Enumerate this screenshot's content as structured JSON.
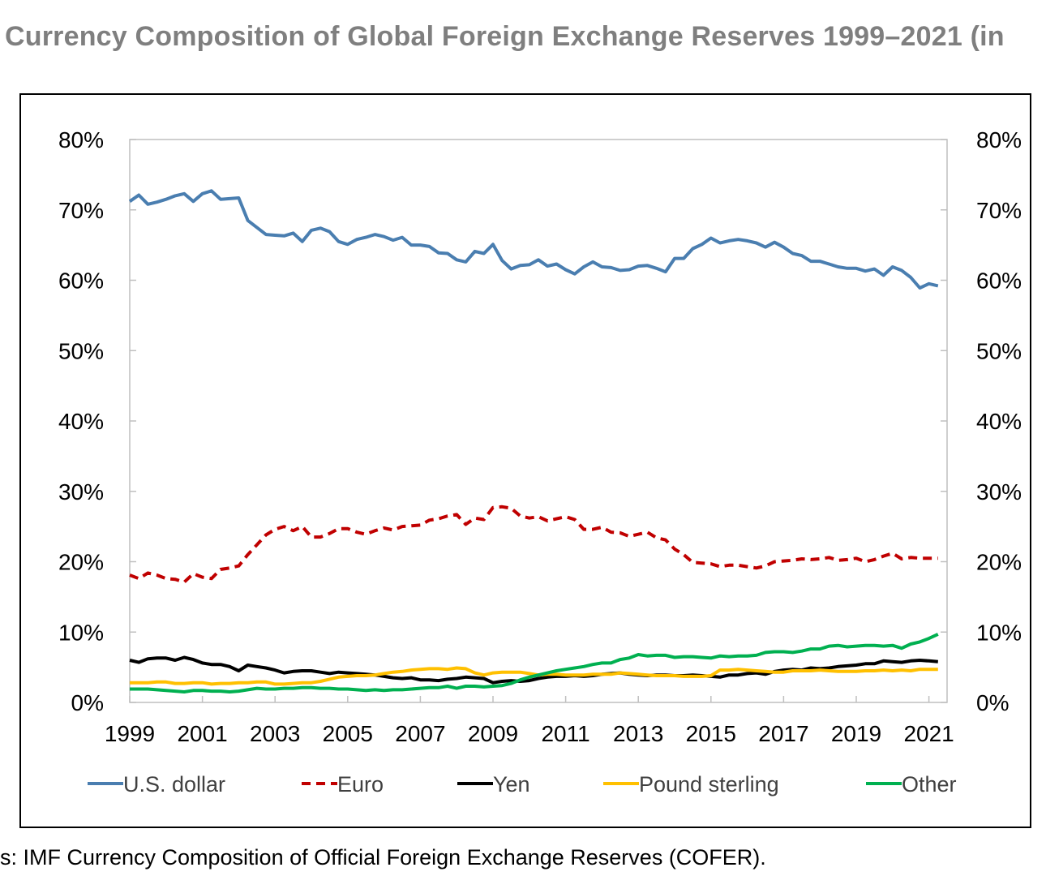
{
  "title": "Currency Composition of Global Foreign Exchange Reserves 1999–2021 (in",
  "source": "s: IMF Currency Composition of Official Foreign Exchange Reserves (COFER).",
  "chart_data": {
    "type": "line",
    "title": "Currency Composition of Global Foreign Exchange Reserves 1999–2021 (in",
    "xlabel": "",
    "ylabel": "",
    "ylim": [
      0,
      80
    ],
    "xlim": [
      1999,
      2021.5
    ],
    "y_ticks": [
      "0%",
      "10%",
      "20%",
      "30%",
      "40%",
      "50%",
      "60%",
      "70%",
      "80%"
    ],
    "x_ticks": [
      "1999",
      "2001",
      "2003",
      "2005",
      "2007",
      "2009",
      "2011",
      "2013",
      "2015",
      "2017",
      "2019",
      "2021"
    ],
    "secondary_y_axis": true,
    "grid": false,
    "legend_position": "bottom",
    "series": [
      {
        "name": "U.S. dollar",
        "color": "#4a7eb0",
        "style": "solid",
        "x": [
          1999.0,
          1999.25,
          1999.5,
          1999.75,
          2000.0,
          2000.25,
          2000.5,
          2000.75,
          2001.0,
          2001.25,
          2001.5,
          2001.75,
          2002.0,
          2002.25,
          2002.5,
          2002.75,
          2003.0,
          2003.25,
          2003.5,
          2003.75,
          2004.0,
          2004.25,
          2004.5,
          2004.75,
          2005.0,
          2005.25,
          2005.5,
          2005.75,
          2006.0,
          2006.25,
          2006.5,
          2006.75,
          2007.0,
          2007.25,
          2007.5,
          2007.75,
          2008.0,
          2008.25,
          2008.5,
          2008.75,
          2009.0,
          2009.25,
          2009.5,
          2009.75,
          2010.0,
          2010.25,
          2010.5,
          2010.75,
          2011.0,
          2011.25,
          2011.5,
          2011.75,
          2012.0,
          2012.25,
          2012.5,
          2012.75,
          2013.0,
          2013.25,
          2013.5,
          2013.75,
          2014.0,
          2014.25,
          2014.5,
          2014.75,
          2015.0,
          2015.25,
          2015.5,
          2015.75,
          2016.0,
          2016.25,
          2016.5,
          2016.75,
          2017.0,
          2017.25,
          2017.5,
          2017.75,
          2018.0,
          2018.25,
          2018.5,
          2018.75,
          2019.0,
          2019.25,
          2019.5,
          2019.75,
          2020.0,
          2020.25,
          2020.5,
          2020.75,
          2021.0,
          2021.25
        ],
        "values": [
          71.2,
          72.1,
          70.8,
          71.1,
          71.5,
          72.0,
          72.3,
          71.2,
          72.3,
          72.7,
          71.5,
          71.6,
          71.7,
          68.5,
          67.5,
          66.5,
          66.4,
          66.3,
          66.7,
          65.5,
          67.1,
          67.4,
          66.9,
          65.5,
          65.1,
          65.8,
          66.1,
          66.5,
          66.2,
          65.7,
          66.1,
          65.0,
          65.0,
          64.8,
          63.9,
          63.8,
          62.9,
          62.6,
          64.1,
          63.8,
          65.1,
          62.8,
          61.6,
          62.1,
          62.2,
          62.9,
          62.0,
          62.3,
          61.5,
          60.9,
          61.9,
          62.6,
          61.9,
          61.8,
          61.4,
          61.5,
          62.0,
          62.1,
          61.7,
          61.2,
          63.1,
          63.1,
          64.5,
          65.1,
          66.0,
          65.3,
          65.6,
          65.8,
          65.6,
          65.3,
          64.7,
          65.4,
          64.7,
          63.8,
          63.5,
          62.7,
          62.7,
          62.3,
          61.9,
          61.7,
          61.7,
          61.3,
          61.6,
          60.7,
          61.9,
          61.4,
          60.4,
          58.9,
          59.5,
          59.2
        ]
      },
      {
        "name": "Euro",
        "color": "#c00000",
        "style": "dashed",
        "x": [
          1999.0,
          1999.25,
          1999.5,
          1999.75,
          2000.0,
          2000.25,
          2000.5,
          2000.75,
          2001.0,
          2001.25,
          2001.5,
          2001.75,
          2002.0,
          2002.25,
          2002.5,
          2002.75,
          2003.0,
          2003.25,
          2003.5,
          2003.75,
          2004.0,
          2004.25,
          2004.5,
          2004.75,
          2005.0,
          2005.25,
          2005.5,
          2005.75,
          2006.0,
          2006.25,
          2006.5,
          2006.75,
          2007.0,
          2007.25,
          2007.5,
          2007.75,
          2008.0,
          2008.25,
          2008.5,
          2008.75,
          2009.0,
          2009.25,
          2009.5,
          2009.75,
          2010.0,
          2010.25,
          2010.5,
          2010.75,
          2011.0,
          2011.25,
          2011.5,
          2011.75,
          2012.0,
          2012.25,
          2012.5,
          2012.75,
          2013.0,
          2013.25,
          2013.5,
          2013.75,
          2014.0,
          2014.25,
          2014.5,
          2014.75,
          2015.0,
          2015.25,
          2015.5,
          2015.75,
          2016.0,
          2016.25,
          2016.5,
          2016.75,
          2017.0,
          2017.25,
          2017.5,
          2017.75,
          2018.0,
          2018.25,
          2018.5,
          2018.75,
          2019.0,
          2019.25,
          2019.5,
          2019.75,
          2020.0,
          2020.25,
          2020.5,
          2020.75,
          2021.0,
          2021.25
        ],
        "values": [
          18.1,
          17.6,
          18.4,
          18.1,
          17.6,
          17.5,
          17.1,
          18.3,
          17.8,
          17.6,
          18.9,
          19.1,
          19.4,
          21.0,
          22.4,
          23.8,
          24.6,
          25.0,
          24.4,
          25.0,
          23.5,
          23.5,
          24.0,
          24.7,
          24.7,
          24.2,
          23.9,
          24.4,
          24.8,
          24.5,
          25.0,
          25.1,
          25.2,
          25.9,
          26.1,
          26.5,
          26.7,
          25.3,
          26.2,
          26.0,
          27.7,
          27.8,
          27.6,
          26.5,
          26.2,
          26.4,
          25.8,
          26.1,
          26.4,
          26.0,
          24.6,
          24.6,
          24.9,
          24.2,
          24.1,
          23.6,
          23.9,
          24.2,
          23.4,
          23.1,
          21.8,
          21.0,
          19.9,
          19.8,
          19.7,
          19.3,
          19.5,
          19.5,
          19.3,
          19.1,
          19.4,
          20.0,
          20.1,
          20.2,
          20.4,
          20.3,
          20.4,
          20.6,
          20.2,
          20.3,
          20.5,
          20.0,
          20.3,
          20.8,
          21.2,
          20.4,
          20.6,
          20.5,
          20.5,
          20.5
        ]
      },
      {
        "name": "Yen",
        "color": "#000000",
        "style": "solid",
        "x": [
          1999.0,
          1999.25,
          1999.5,
          1999.75,
          2000.0,
          2000.25,
          2000.5,
          2000.75,
          2001.0,
          2001.25,
          2001.5,
          2001.75,
          2002.0,
          2002.25,
          2002.5,
          2002.75,
          2003.0,
          2003.25,
          2003.5,
          2003.75,
          2004.0,
          2004.25,
          2004.5,
          2004.75,
          2005.0,
          2005.25,
          2005.5,
          2005.75,
          2006.0,
          2006.25,
          2006.5,
          2006.75,
          2007.0,
          2007.25,
          2007.5,
          2007.75,
          2008.0,
          2008.25,
          2008.5,
          2008.75,
          2009.0,
          2009.25,
          2009.5,
          2009.75,
          2010.0,
          2010.25,
          2010.5,
          2010.75,
          2011.0,
          2011.25,
          2011.5,
          2011.75,
          2012.0,
          2012.25,
          2012.5,
          2012.75,
          2013.0,
          2013.25,
          2013.5,
          2013.75,
          2014.0,
          2014.25,
          2014.5,
          2014.75,
          2015.0,
          2015.25,
          2015.5,
          2015.75,
          2016.0,
          2016.25,
          2016.5,
          2016.75,
          2017.0,
          2017.25,
          2017.5,
          2017.75,
          2018.0,
          2018.25,
          2018.5,
          2018.75,
          2019.0,
          2019.25,
          2019.5,
          2019.75,
          2020.0,
          2020.25,
          2020.5,
          2020.75,
          2021.0,
          2021.25
        ],
        "values": [
          6.0,
          5.7,
          6.2,
          6.3,
          6.3,
          6.0,
          6.4,
          6.1,
          5.6,
          5.4,
          5.4,
          5.1,
          4.5,
          5.3,
          5.1,
          4.9,
          4.6,
          4.2,
          4.4,
          4.5,
          4.5,
          4.3,
          4.1,
          4.3,
          4.2,
          4.1,
          4.0,
          3.9,
          3.7,
          3.5,
          3.4,
          3.5,
          3.2,
          3.2,
          3.1,
          3.3,
          3.4,
          3.6,
          3.5,
          3.4,
          2.8,
          3.0,
          3.1,
          3.0,
          3.1,
          3.4,
          3.6,
          3.7,
          3.7,
          3.8,
          3.7,
          3.8,
          4.0,
          4.1,
          4.2,
          4.0,
          3.9,
          3.8,
          3.9,
          3.9,
          3.8,
          3.8,
          3.9,
          3.8,
          3.7,
          3.6,
          3.9,
          3.9,
          4.1,
          4.2,
          4.0,
          4.4,
          4.6,
          4.7,
          4.6,
          4.9,
          4.8,
          4.9,
          5.1,
          5.2,
          5.3,
          5.5,
          5.5,
          5.9,
          5.8,
          5.7,
          5.9,
          6.0,
          5.9,
          5.8
        ]
      },
      {
        "name": "Pound sterling",
        "color": "#ffc000",
        "style": "solid",
        "x": [
          1999.0,
          1999.25,
          1999.5,
          1999.75,
          2000.0,
          2000.25,
          2000.5,
          2000.75,
          2001.0,
          2001.25,
          2001.5,
          2001.75,
          2002.0,
          2002.25,
          2002.5,
          2002.75,
          2003.0,
          2003.25,
          2003.5,
          2003.75,
          2004.0,
          2004.25,
          2004.5,
          2004.75,
          2005.0,
          2005.25,
          2005.5,
          2005.75,
          2006.0,
          2006.25,
          2006.5,
          2006.75,
          2007.0,
          2007.25,
          2007.5,
          2007.75,
          2008.0,
          2008.25,
          2008.5,
          2008.75,
          2009.0,
          2009.25,
          2009.5,
          2009.75,
          2010.0,
          2010.25,
          2010.5,
          2010.75,
          2011.0,
          2011.25,
          2011.5,
          2011.75,
          2012.0,
          2012.25,
          2012.5,
          2012.75,
          2013.0,
          2013.25,
          2013.5,
          2013.75,
          2014.0,
          2014.25,
          2014.5,
          2014.75,
          2015.0,
          2015.25,
          2015.5,
          2015.75,
          2016.0,
          2016.25,
          2016.5,
          2016.75,
          2017.0,
          2017.25,
          2017.5,
          2017.75,
          2018.0,
          2018.25,
          2018.5,
          2018.75,
          2019.0,
          2019.25,
          2019.5,
          2019.75,
          2020.0,
          2020.25,
          2020.5,
          2020.75,
          2021.0,
          2021.25
        ],
        "values": [
          2.8,
          2.8,
          2.8,
          2.9,
          2.9,
          2.7,
          2.7,
          2.8,
          2.8,
          2.6,
          2.7,
          2.7,
          2.8,
          2.8,
          2.9,
          2.9,
          2.6,
          2.6,
          2.7,
          2.8,
          2.8,
          3.0,
          3.3,
          3.6,
          3.7,
          3.8,
          3.8,
          3.9,
          4.1,
          4.3,
          4.4,
          4.6,
          4.7,
          4.8,
          4.8,
          4.7,
          4.9,
          4.8,
          4.2,
          3.9,
          4.2,
          4.3,
          4.3,
          4.3,
          4.1,
          3.9,
          4.0,
          4.0,
          3.9,
          3.9,
          3.9,
          4.0,
          4.0,
          4.0,
          4.2,
          4.1,
          4.0,
          3.9,
          3.8,
          3.8,
          3.8,
          3.7,
          3.7,
          3.7,
          3.8,
          4.6,
          4.6,
          4.7,
          4.6,
          4.5,
          4.4,
          4.3,
          4.3,
          4.5,
          4.5,
          4.5,
          4.6,
          4.5,
          4.4,
          4.4,
          4.4,
          4.5,
          4.5,
          4.6,
          4.5,
          4.6,
          4.5,
          4.7,
          4.7,
          4.7
        ]
      },
      {
        "name": "Other",
        "color": "#00b050",
        "style": "solid",
        "x": [
          1999.0,
          1999.25,
          1999.5,
          1999.75,
          2000.0,
          2000.25,
          2000.5,
          2000.75,
          2001.0,
          2001.25,
          2001.5,
          2001.75,
          2002.0,
          2002.25,
          2002.5,
          2002.75,
          2003.0,
          2003.25,
          2003.5,
          2003.75,
          2004.0,
          2004.25,
          2004.5,
          2004.75,
          2005.0,
          2005.25,
          2005.5,
          2005.75,
          2006.0,
          2006.25,
          2006.5,
          2006.75,
          2007.0,
          2007.25,
          2007.5,
          2007.75,
          2008.0,
          2008.25,
          2008.5,
          2008.75,
          2009.0,
          2009.25,
          2009.5,
          2009.75,
          2010.0,
          2010.25,
          2010.5,
          2010.75,
          2011.0,
          2011.25,
          2011.5,
          2011.75,
          2012.0,
          2012.25,
          2012.5,
          2012.75,
          2013.0,
          2013.25,
          2013.5,
          2013.75,
          2014.0,
          2014.25,
          2014.5,
          2014.75,
          2015.0,
          2015.25,
          2015.5,
          2015.75,
          2016.0,
          2016.25,
          2016.5,
          2016.75,
          2017.0,
          2017.25,
          2017.5,
          2017.75,
          2018.0,
          2018.25,
          2018.5,
          2018.75,
          2019.0,
          2019.25,
          2019.5,
          2019.75,
          2020.0,
          2020.25,
          2020.5,
          2020.75,
          2021.0,
          2021.25
        ],
        "values": [
          1.9,
          1.9,
          1.9,
          1.8,
          1.7,
          1.6,
          1.5,
          1.7,
          1.7,
          1.6,
          1.6,
          1.5,
          1.6,
          1.8,
          2.0,
          1.9,
          1.9,
          2.0,
          2.0,
          2.1,
          2.1,
          2.0,
          2.0,
          1.9,
          1.9,
          1.8,
          1.7,
          1.8,
          1.7,
          1.8,
          1.8,
          1.9,
          2.0,
          2.1,
          2.1,
          2.3,
          2.0,
          2.3,
          2.3,
          2.2,
          2.3,
          2.4,
          2.7,
          3.2,
          3.6,
          3.9,
          4.2,
          4.5,
          4.7,
          4.9,
          5.1,
          5.4,
          5.6,
          5.6,
          6.1,
          6.3,
          6.8,
          6.6,
          6.7,
          6.7,
          6.4,
          6.5,
          6.5,
          6.4,
          6.3,
          6.6,
          6.5,
          6.6,
          6.6,
          6.7,
          7.1,
          7.2,
          7.2,
          7.1,
          7.3,
          7.6,
          7.6,
          8.0,
          8.1,
          7.9,
          8.0,
          8.1,
          8.1,
          8.0,
          8.1,
          7.7,
          8.3,
          8.6,
          9.1,
          9.7
        ]
      }
    ]
  }
}
